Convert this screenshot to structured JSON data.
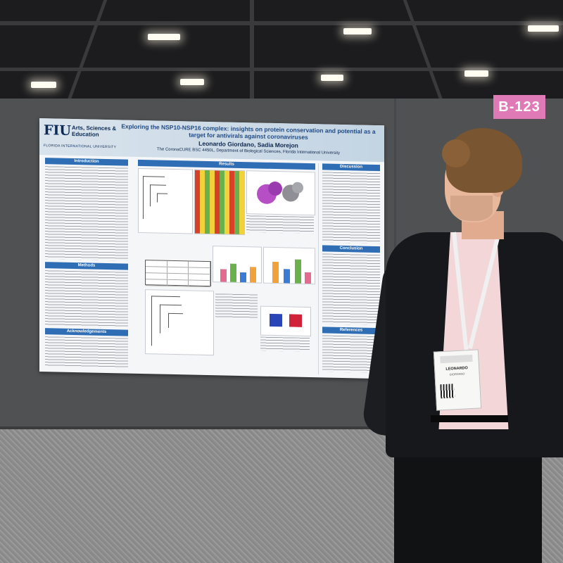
{
  "scene": {
    "booth_number": "B-123",
    "wall_color": "#4f5153",
    "booth_label_color": "#e07ab6"
  },
  "poster": {
    "logo": {
      "initials": "FIU",
      "school": "Arts, Sciences & Education",
      "university": "FLORIDA INTERNATIONAL UNIVERSITY"
    },
    "title": "Exploring the NSP10-NSP16 complex: insights on protein conservation and potential as a target for antivirals against coronaviruses",
    "authors": "Leonardo Giordano, Sadia Morejon",
    "affiliation": "The CoronaCURE BSC 4450L, Department of Biological Sciences, Florida International University",
    "sections": {
      "introduction": "Introduction",
      "methods": "Methods",
      "acknowledgements": "Acknowledgements",
      "results": "Results",
      "discussion": "Discussion",
      "conclusion": "Conclusion",
      "references": "References"
    },
    "accent_color": "#2f6db5"
  },
  "badge": {
    "name": "LEONARDO",
    "surname": "GIORDANO"
  }
}
